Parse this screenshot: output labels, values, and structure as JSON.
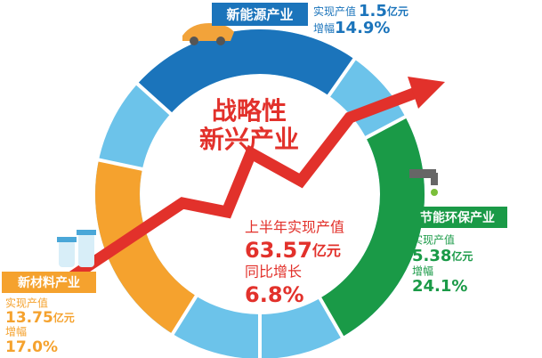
{
  "center": {
    "title_line1": "战略性",
    "title_line2": "新兴产业",
    "output_label": "上半年实现产值",
    "output_value": "63.57",
    "output_unit": "亿元",
    "growth_label": "同比增长",
    "growth_value": "6.8%"
  },
  "sectors": [
    {
      "name": "新能源产业",
      "output_label": "实现产值",
      "output_value": "1.5",
      "output_unit": "亿元",
      "growth_label": "增幅",
      "growth_value": "14.9%"
    },
    {
      "name": "节能环保产业",
      "output_label": "实现产值",
      "output_value": "5.38",
      "output_unit": "亿元",
      "growth_label": "增幅",
      "growth_value": "24.1%"
    },
    {
      "name": "新材料产业",
      "output_label": "实现产值",
      "output_value": "13.75",
      "output_unit": "亿元",
      "growth_label": "增幅",
      "growth_value": "17.0%"
    }
  ]
}
